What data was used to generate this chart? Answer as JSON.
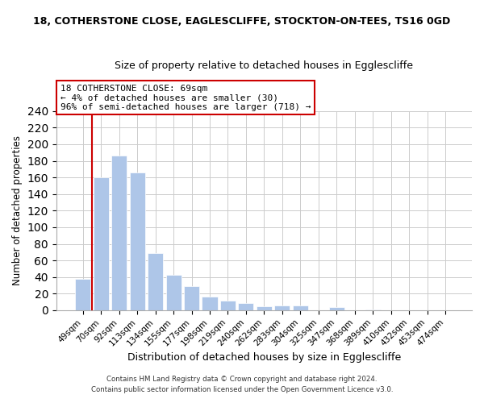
{
  "title_line1": "18, COTHERSTONE CLOSE, EAGLESCLIFFE, STOCKTON-ON-TEES, TS16 0GD",
  "title_line2": "Size of property relative to detached houses in Egglescliffe",
  "xlabel": "Distribution of detached houses by size in Egglescliffe",
  "ylabel": "Number of detached properties",
  "categories": [
    "49sqm",
    "70sqm",
    "92sqm",
    "113sqm",
    "134sqm",
    "155sqm",
    "177sqm",
    "198sqm",
    "219sqm",
    "240sqm",
    "262sqm",
    "283sqm",
    "304sqm",
    "325sqm",
    "347sqm",
    "368sqm",
    "389sqm",
    "410sqm",
    "432sqm",
    "453sqm",
    "474sqm"
  ],
  "values": [
    38,
    160,
    186,
    166,
    69,
    43,
    29,
    16,
    12,
    9,
    5,
    6,
    6,
    0,
    4,
    0,
    1,
    0,
    0,
    0,
    0
  ],
  "bar_color": "#aec6e8",
  "highlight_color": "#cc0000",
  "annotation_title": "18 COTHERSTONE CLOSE: 69sqm",
  "annotation_line2": "← 4% of detached houses are smaller (30)",
  "annotation_line3": "96% of semi-detached houses are larger (718) →",
  "ylim": [
    0,
    240
  ],
  "yticks": [
    0,
    20,
    40,
    60,
    80,
    100,
    120,
    140,
    160,
    180,
    200,
    220,
    240
  ],
  "footer_line1": "Contains HM Land Registry data © Crown copyright and database right 2024.",
  "footer_line2": "Contains public sector information licensed under the Open Government Licence v3.0.",
  "red_line_x": 0.5
}
